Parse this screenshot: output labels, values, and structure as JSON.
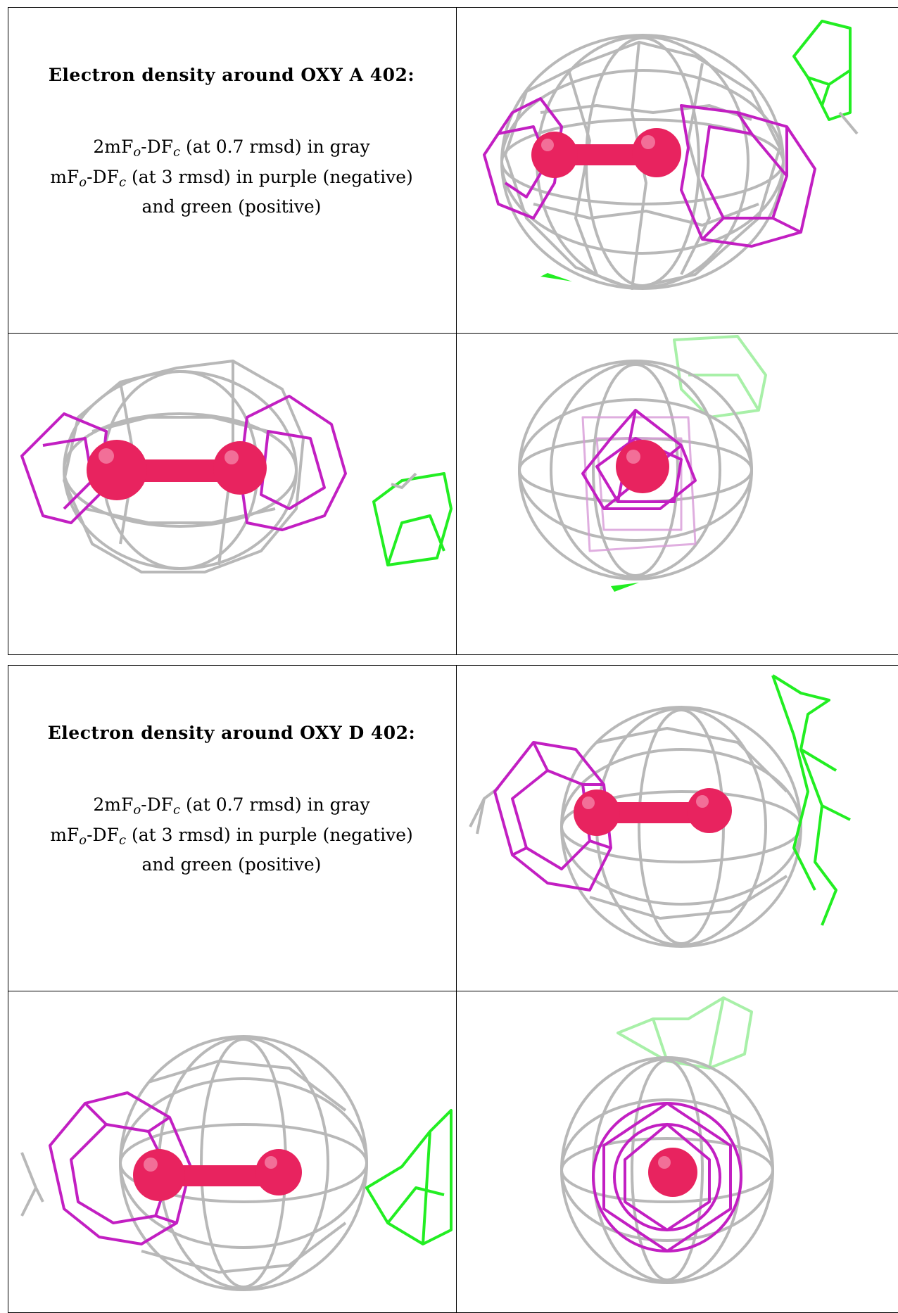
{
  "panels": [
    {
      "heading": "Electron density around OXY A 402:",
      "line1": {
        "a": "2mF",
        "b": "o",
        "c": "-DF",
        "d": "c",
        "e": " (at 0.7 rmsd) in gray"
      },
      "line2": {
        "a": "mF",
        "b": "o",
        "c": "-DF",
        "d": "c",
        "e": " (at 3 rmsd) in purple (negative)"
      },
      "line3": "and green (positive)"
    },
    {
      "heading": "Electron density around OXY D 402:",
      "line1": {
        "a": "2mF",
        "b": "o",
        "c": "-DF",
        "d": "c",
        "e": " (at 0.7 rmsd) in gray"
      },
      "line2": {
        "a": "mF",
        "b": "o",
        "c": "-DF",
        "d": "c",
        "e": " (at 3 rmsd) in purple (negative)"
      },
      "line3": "and green (positive)"
    }
  ],
  "colors": {
    "gray_mesh": "#b4b4b4",
    "purple_mesh": "#c21fc2",
    "green_mesh": "#22ee22",
    "atom": "#e8235f"
  }
}
